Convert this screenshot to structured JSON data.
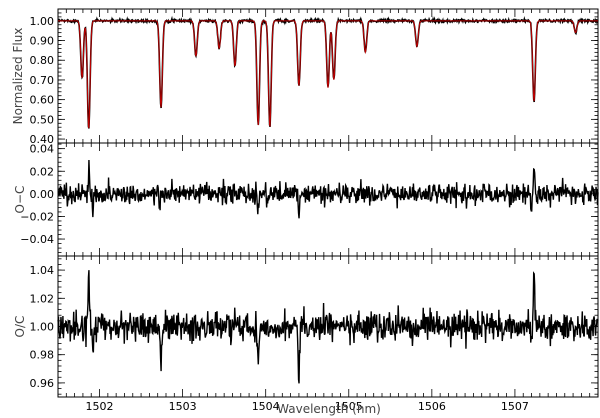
{
  "chart_data": [
    {
      "type": "line",
      "ylabel": "Normalized Flux",
      "xlim": [
        1501.5,
        1508.0
      ],
      "ylim": [
        0.38,
        1.06
      ],
      "yticks": [
        "1.00",
        "0.90",
        "0.80",
        "0.70",
        "0.60",
        "0.50",
        "0.40"
      ],
      "ytick_values": [
        1.0,
        0.9,
        0.8,
        0.7,
        0.6,
        0.5,
        0.4
      ],
      "continuum": 1.0,
      "lines": [
        {
          "x": 1501.79,
          "depth": 0.29
        },
        {
          "x": 1501.87,
          "depth": 0.55
        },
        {
          "x": 1502.74,
          "depth": 0.44
        },
        {
          "x": 1503.16,
          "depth": 0.18
        },
        {
          "x": 1503.44,
          "depth": 0.14
        },
        {
          "x": 1503.63,
          "depth": 0.23
        },
        {
          "x": 1503.91,
          "depth": 0.53
        },
        {
          "x": 1504.05,
          "depth": 0.54
        },
        {
          "x": 1504.4,
          "depth": 0.33
        },
        {
          "x": 1504.75,
          "depth": 0.34
        },
        {
          "x": 1504.82,
          "depth": 0.3
        },
        {
          "x": 1505.2,
          "depth": 0.16
        },
        {
          "x": 1505.82,
          "depth": 0.13
        },
        {
          "x": 1507.23,
          "depth": 0.41
        },
        {
          "x": 1507.73,
          "depth": 0.06
        }
      ],
      "series": [
        {
          "name": "observed",
          "color": "#000000"
        },
        {
          "name": "model",
          "color": "#c00000"
        }
      ]
    },
    {
      "type": "line",
      "ylabel": "O−C",
      "xlim": [
        1501.5,
        1508.0
      ],
      "ylim": [
        -0.055,
        0.045
      ],
      "yticks": [
        "0.04",
        "0.02",
        "0.00",
        "−0.02",
        "−0.04"
      ],
      "ytick_values": [
        0.04,
        0.02,
        0.0,
        -0.02,
        -0.04
      ],
      "noise_sigma": 0.0045,
      "spikes": [
        {
          "x": 1501.87,
          "value": 0.022
        },
        {
          "x": 1501.92,
          "value": -0.016
        },
        {
          "x": 1502.72,
          "value": -0.013
        },
        {
          "x": 1503.91,
          "value": -0.014
        },
        {
          "x": 1504.4,
          "value": -0.023
        },
        {
          "x": 1507.23,
          "value": 0.022
        },
        {
          "x": 1507.2,
          "value": -0.012
        }
      ],
      "series": [
        {
          "name": "residual",
          "color": "#000000"
        }
      ]
    },
    {
      "type": "line",
      "ylabel": "O/C",
      "xlabel": "Wavelength (nm)",
      "xlim": [
        1501.5,
        1508.0
      ],
      "ylim": [
        0.95,
        1.05
      ],
      "yticks": [
        "1.04",
        "1.02",
        "1.00",
        "0.98",
        "0.96"
      ],
      "ytick_values": [
        1.04,
        1.02,
        1.0,
        0.98,
        0.96
      ],
      "xticks": [
        "1502",
        "1503",
        "1504",
        "1505",
        "1506",
        "1507"
      ],
      "xtick_values": [
        1502,
        1503,
        1504,
        1505,
        1506,
        1507
      ],
      "noise_sigma": 0.005,
      "spikes": [
        {
          "x": 1501.87,
          "value": 1.04
        },
        {
          "x": 1501.92,
          "value": 0.982
        },
        {
          "x": 1502.74,
          "value": 0.971
        },
        {
          "x": 1503.91,
          "value": 0.969
        },
        {
          "x": 1504.4,
          "value": 0.968
        },
        {
          "x": 1507.23,
          "value": 1.036
        },
        {
          "x": 1507.2,
          "value": 0.985
        }
      ],
      "series": [
        {
          "name": "ratio",
          "color": "#000000"
        }
      ]
    }
  ]
}
